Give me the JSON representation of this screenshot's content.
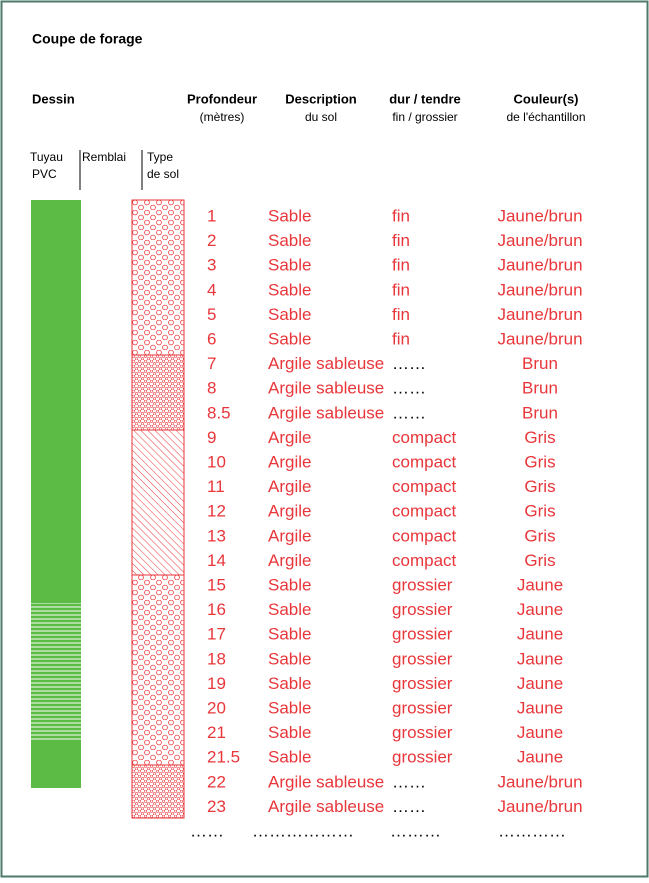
{
  "title": "Coupe de forage",
  "headers": {
    "dessin": "Dessin",
    "profondeur": [
      "Profondeur",
      "(mètres)"
    ],
    "description": [
      "Description",
      "du sol"
    ],
    "durete": [
      "dur / tendre",
      "fin / grossier"
    ],
    "couleur": [
      "Couleur(s)",
      "de l'échantillon"
    ],
    "tuyau": [
      "Tuyau",
      "PVC"
    ],
    "remblai": "Remblai",
    "type": [
      "Type",
      "de sol"
    ]
  },
  "rows": [
    [
      "1",
      "Sable",
      "fin",
      "Jaune/brun"
    ],
    [
      "2",
      "Sable",
      "fin",
      "Jaune/brun"
    ],
    [
      "3",
      "Sable",
      "fin",
      "Jaune/brun"
    ],
    [
      "4",
      "Sable",
      "fin",
      "Jaune/brun"
    ],
    [
      "5",
      "Sable",
      "fin",
      "Jaune/brun"
    ],
    [
      "6",
      "Sable",
      "fin",
      "Jaune/brun"
    ],
    [
      "7",
      "Argile sableuse",
      "……",
      "Brun"
    ],
    [
      "8",
      "Argile sableuse",
      "……",
      "Brun"
    ],
    [
      "8.5",
      "Argile sableuse",
      "……",
      "Brun"
    ],
    [
      "9",
      "Argile",
      "compact",
      "Gris"
    ],
    [
      "10",
      "Argile",
      "compact",
      "Gris"
    ],
    [
      "11",
      "Argile",
      "compact",
      "Gris"
    ],
    [
      "12",
      "Argile",
      "compact",
      "Gris"
    ],
    [
      "13",
      "Argile",
      "compact",
      "Gris"
    ],
    [
      "14",
      "Argile",
      "compact",
      "Gris"
    ],
    [
      "15",
      "Sable",
      "grossier",
      "Jaune"
    ],
    [
      "16",
      "Sable",
      "grossier",
      "Jaune"
    ],
    [
      "17",
      "Sable",
      "grossier",
      "Jaune"
    ],
    [
      "18",
      "Sable",
      "grossier",
      "Jaune"
    ],
    [
      "19",
      "Sable",
      "grossier",
      "Jaune"
    ],
    [
      "20",
      "Sable",
      "grossier",
      "Jaune"
    ],
    [
      "21",
      "Sable",
      "grossier",
      "Jaune"
    ],
    [
      "21.5",
      "Sable",
      "grossier",
      "Jaune"
    ],
    [
      "22",
      "Argile sableuse",
      "……",
      "Jaune/brun"
    ],
    [
      "23",
      "Argile sableuse",
      "……",
      "Jaune/brun"
    ]
  ],
  "footer_dots": [
    "……",
    "………………",
    "………",
    "…………"
  ]
}
